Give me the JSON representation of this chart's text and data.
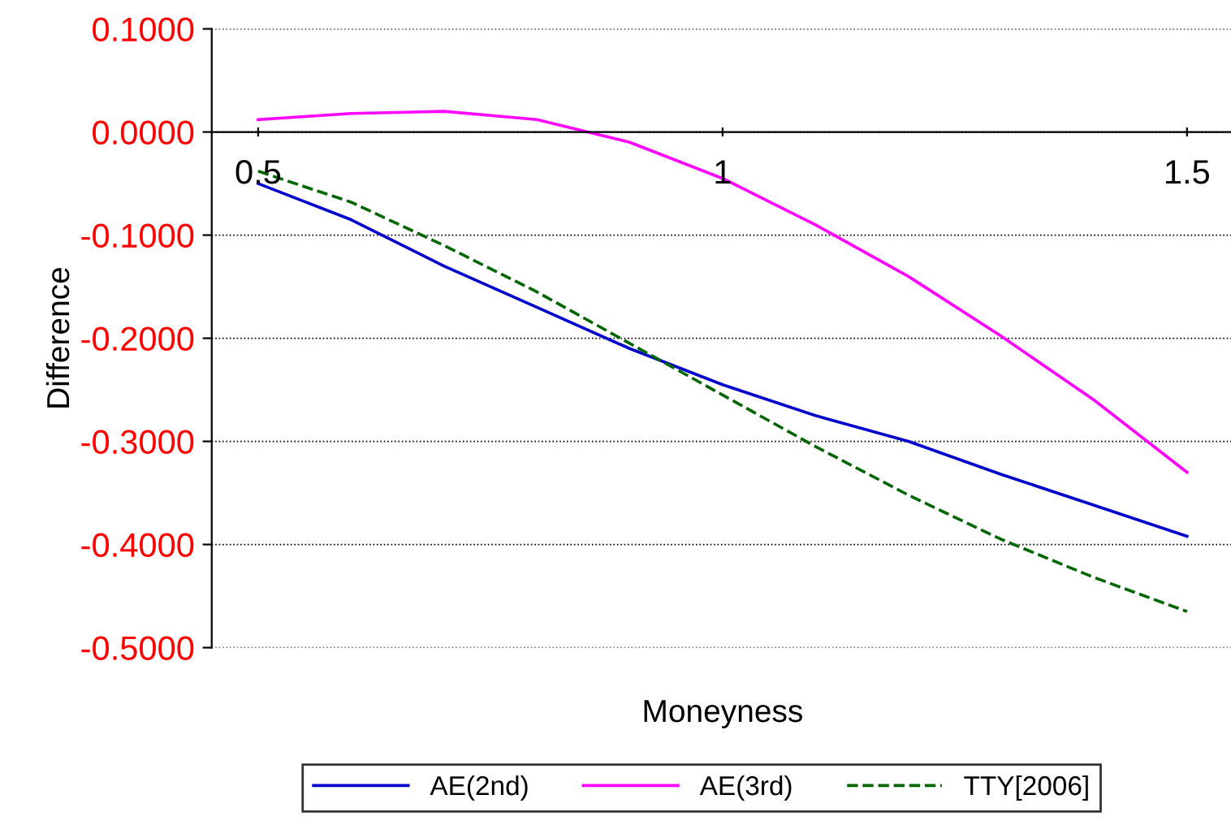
{
  "chart_data": {
    "type": "line",
    "xlabel": "Moneyness",
    "ylabel": "Difference",
    "x": [
      0.5,
      0.6,
      0.7,
      0.8,
      0.9,
      1.0,
      1.1,
      1.2,
      1.3,
      1.4,
      1.5
    ],
    "series": [
      {
        "name": "AE(2nd)",
        "color": "#0000cc",
        "values": [
          -0.05,
          -0.085,
          -0.13,
          -0.17,
          -0.21,
          -0.245,
          -0.275,
          -0.3,
          -0.332,
          -0.362,
          -0.392
        ]
      },
      {
        "name": "AE(3rd)",
        "color": "#ff00ff",
        "values": [
          0.012,
          0.018,
          0.02,
          0.012,
          -0.01,
          -0.045,
          -0.09,
          -0.14,
          -0.198,
          -0.26,
          -0.33
        ]
      },
      {
        "name": "TTY[2006]",
        "color": "#006600",
        "line_style": "dashed",
        "values": [
          -0.038,
          -0.068,
          -0.11,
          -0.155,
          -0.205,
          -0.255,
          -0.305,
          -0.352,
          -0.395,
          -0.432,
          -0.465
        ]
      }
    ],
    "xlim": [
      0.45,
      1.55
    ],
    "xticks": [
      0.5,
      1,
      1.5
    ],
    "ylim": [
      -0.5,
      0.1
    ],
    "yticks": [
      {
        "value": 0.1,
        "label": "0.1000"
      },
      {
        "value": 0,
        "label": "0.0000"
      },
      {
        "value": -0.1,
        "label": "-0.1000"
      },
      {
        "value": -0.2,
        "label": "-0.2000"
      },
      {
        "value": -0.3,
        "label": "-0.3000"
      },
      {
        "value": -0.4,
        "label": "-0.4000"
      },
      {
        "value": -0.5,
        "label": "-0.5000"
      }
    ],
    "grid": "y",
    "legend": "bottom"
  }
}
